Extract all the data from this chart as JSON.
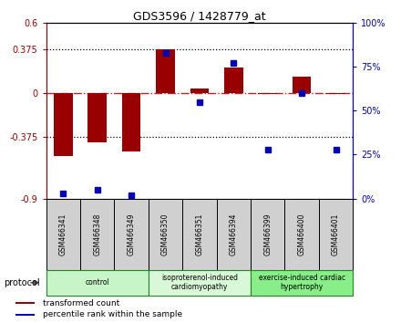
{
  "title": "GDS3596 / 1428779_at",
  "samples": [
    "GSM466341",
    "GSM466348",
    "GSM466349",
    "GSM466350",
    "GSM466351",
    "GSM466394",
    "GSM466399",
    "GSM466400",
    "GSM466401"
  ],
  "transformed_count": [
    -0.54,
    -0.42,
    -0.5,
    0.375,
    0.04,
    0.22,
    -0.01,
    0.14,
    -0.01
  ],
  "percentile_rank": [
    3,
    5,
    2,
    83,
    55,
    77,
    28,
    60,
    28
  ],
  "groups": [
    {
      "label": "control",
      "start": 0,
      "end": 3,
      "color": "#c8f5c8"
    },
    {
      "label": "isoproterenol-induced\ncardiomyopathy",
      "start": 3,
      "end": 6,
      "color": "#d8f8d8"
    },
    {
      "label": "exercise-induced cardiac\nhypertrophy",
      "start": 6,
      "end": 9,
      "color": "#88ee88"
    }
  ],
  "left_ylim": [
    -0.9,
    0.6
  ],
  "right_ylim": [
    0,
    100
  ],
  "left_yticks": [
    -0.9,
    -0.375,
    0,
    0.375,
    0.6
  ],
  "right_yticks": [
    0,
    25,
    50,
    75,
    100
  ],
  "left_ytick_labels": [
    "-0.9",
    "-0.375",
    "0",
    "0.375",
    "0.6"
  ],
  "right_ytick_labels": [
    "0%",
    "25%",
    "50%",
    "75%",
    "100%"
  ],
  "hline_y": [
    0.375,
    -0.375
  ],
  "bar_color": "#990000",
  "dot_color": "#0000bb",
  "zero_line_color": "#bb2222",
  "protocol_label": "protocol",
  "sample_box_color": "#d0d0d0",
  "legend_items": [
    {
      "label": "transformed count",
      "color": "#990000"
    },
    {
      "label": "percentile rank within the sample",
      "color": "#0000bb"
    }
  ]
}
